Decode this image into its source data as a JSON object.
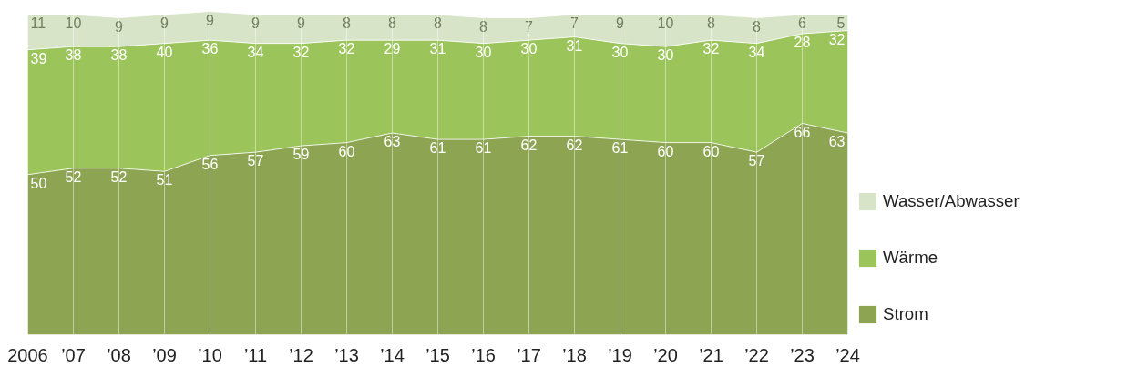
{
  "chart_data": {
    "type": "area",
    "stacked": true,
    "data_labels": true,
    "grid": "x",
    "legend": "right",
    "tick_labels": "x",
    "ylim": [
      0,
      101
    ],
    "categories": [
      "2006",
      "’07",
      "’08",
      "’09",
      "’10",
      "’11",
      "’12",
      "’13",
      "’14",
      "’15",
      "’16",
      "’17",
      "’18",
      "’19",
      "’20",
      "’21",
      "’22",
      "’23",
      "’24"
    ],
    "series": [
      {
        "name": "Strom",
        "color": "#8da453",
        "values": [
          50,
          52,
          52,
          51,
          56,
          57,
          59,
          60,
          63,
          61,
          61,
          62,
          62,
          61,
          60,
          60,
          57,
          66,
          63
        ]
      },
      {
        "name": "Wärme",
        "color": "#9bc45a",
        "values": [
          39,
          38,
          38,
          40,
          36,
          34,
          32,
          32,
          29,
          31,
          30,
          30,
          31,
          30,
          30,
          32,
          34,
          28,
          32
        ]
      },
      {
        "name": "Wasser/Abwasser",
        "color": "#d7e4c8",
        "values": [
          11,
          10,
          9,
          9,
          9,
          9,
          9,
          8,
          8,
          8,
          8,
          7,
          7,
          9,
          10,
          8,
          8,
          6,
          5
        ]
      }
    ]
  }
}
